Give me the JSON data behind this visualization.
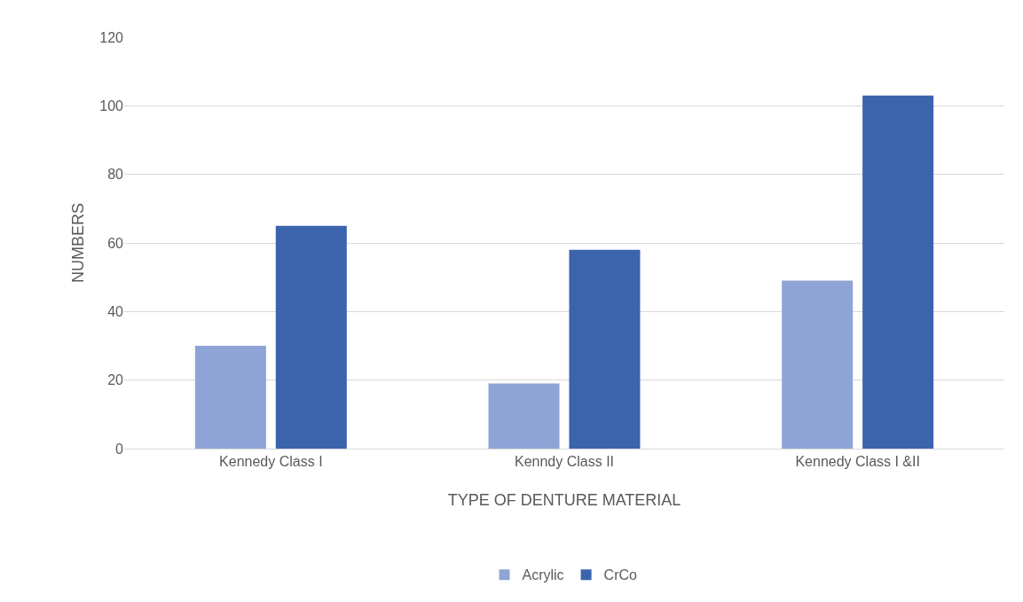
{
  "chart_data": {
    "type": "bar",
    "xlabel": "TYPE OF DENTURE MATERIAL",
    "ylabel": "NUMBERS",
    "categories": [
      "Kennedy Class I",
      "Kenndy Class II",
      "Kennedy Class I &II"
    ],
    "series": [
      {
        "name": "Acrylic",
        "color": "#8fa4d6",
        "values": [
          30,
          19,
          49
        ]
      },
      {
        "name": "CrCo",
        "color": "#3b64ad",
        "values": [
          65,
          58,
          103
        ]
      }
    ],
    "ylim": [
      0,
      120
    ],
    "yticks": [
      0,
      20,
      40,
      60,
      80,
      100,
      120
    ],
    "grid": "y",
    "legend": "bottom"
  }
}
